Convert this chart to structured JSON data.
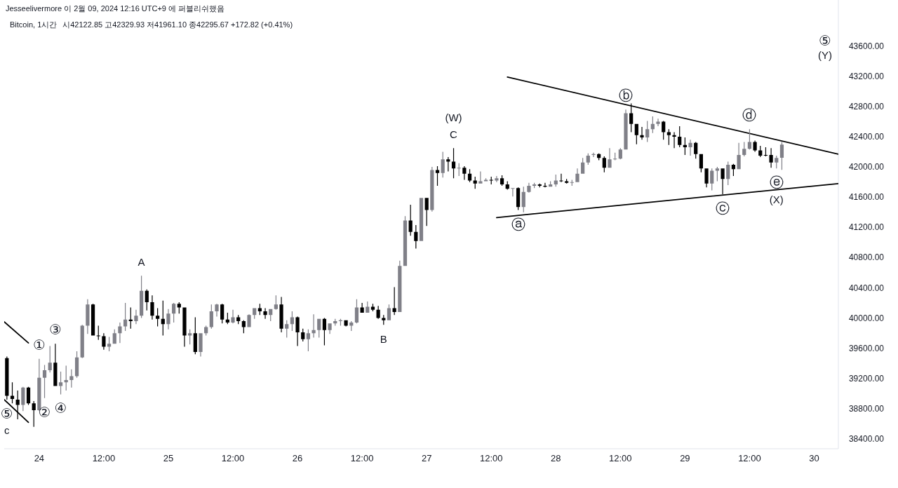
{
  "chart_data": {
    "type": "candlestick",
    "title": "Bitcoin, 1시간",
    "subtitle": "시42122.85 고42329.93 저41961.10 종42295.67 +172.82 (+0.41%)",
    "annotations": [
      "Jesseelivermore 이 2월 09, 2024 12:16 UTC+9 에 퍼블리쉬했음",
      "⑤",
      "(Y)",
      {
        "text": "C",
        "x": "2024-01-27T05:00",
        "y": 42250
      },
      {
        "text": "(W)",
        "x": "2024-01-27T05:00",
        "y": 42250
      },
      {
        "text": "ⓑ",
        "x": "2024-01-28T13:00",
        "y": 42760
      },
      {
        "text": "ⓓ",
        "x": "2024-01-29T12:00",
        "y": 42500
      },
      {
        "text": "ⓐ",
        "x": "2024-01-27T17:00",
        "y": 41430
      },
      {
        "text": "ⓒ",
        "x": "2024-01-29T07:00",
        "y": 41640
      },
      {
        "text": "ⓔ",
        "x": "2024-01-29T17:00",
        "y": 41980
      },
      {
        "text": "(X)",
        "x": "2024-01-29T17:00",
        "y": 41980
      },
      {
        "text": "A",
        "x": "2024-01-24T19:00",
        "y": 40560
      },
      {
        "text": "B",
        "x": "2024-01-26T16:00",
        "y": 39910
      },
      {
        "text": "①",
        "x": "2024-01-24T00:00",
        "y": 39460
      },
      {
        "text": "③",
        "x": "2024-01-24T03:00",
        "y": 39660
      },
      {
        "text": "②",
        "x": "2024-01-24T01:00",
        "y": 38940
      },
      {
        "text": "④",
        "x": "2024-01-24T04:00",
        "y": 38990
      },
      {
        "text": "⑤",
        "x": "2024-01-23T18:00",
        "y": 38920
      },
      {
        "text": "c",
        "x": "2024-01-23T18:00",
        "y": 38920
      }
    ],
    "x": [
      "2024-01-23T18:00",
      "2024-01-23T19:00",
      "2024-01-23T20:00",
      "2024-01-23T21:00",
      "2024-01-23T22:00",
      "2024-01-23T23:00",
      "2024-01-24T00:00",
      "2024-01-24T01:00",
      "2024-01-24T02:00",
      "2024-01-24T03:00",
      "2024-01-24T04:00",
      "2024-01-24T05:00",
      "2024-01-24T06:00",
      "2024-01-24T07:00",
      "2024-01-24T08:00",
      "2024-01-24T09:00",
      "2024-01-24T10:00",
      "2024-01-24T11:00",
      "2024-01-24T12:00",
      "2024-01-24T13:00",
      "2024-01-24T14:00",
      "2024-01-24T15:00",
      "2024-01-24T16:00",
      "2024-01-24T17:00",
      "2024-01-24T18:00",
      "2024-01-24T19:00",
      "2024-01-24T20:00",
      "2024-01-24T21:00",
      "2024-01-24T22:00",
      "2024-01-24T23:00",
      "2024-01-25T00:00",
      "2024-01-25T01:00",
      "2024-01-25T02:00",
      "2024-01-25T03:00",
      "2024-01-25T04:00",
      "2024-01-25T05:00",
      "2024-01-25T06:00",
      "2024-01-25T07:00",
      "2024-01-25T08:00",
      "2024-01-25T09:00",
      "2024-01-25T10:00",
      "2024-01-25T11:00",
      "2024-01-25T12:00",
      "2024-01-25T13:00",
      "2024-01-25T14:00",
      "2024-01-25T15:00",
      "2024-01-25T16:00",
      "2024-01-25T17:00",
      "2024-01-25T18:00",
      "2024-01-25T19:00",
      "2024-01-25T20:00",
      "2024-01-25T21:00",
      "2024-01-25T22:00",
      "2024-01-25T23:00",
      "2024-01-26T00:00",
      "2024-01-26T01:00",
      "2024-01-26T02:00",
      "2024-01-26T03:00",
      "2024-01-26T04:00",
      "2024-01-26T05:00",
      "2024-01-26T06:00",
      "2024-01-26T07:00",
      "2024-01-26T08:00",
      "2024-01-26T09:00",
      "2024-01-26T10:00",
      "2024-01-26T11:00",
      "2024-01-26T12:00",
      "2024-01-26T13:00",
      "2024-01-26T14:00",
      "2024-01-26T15:00",
      "2024-01-26T16:00",
      "2024-01-26T17:00",
      "2024-01-26T18:00",
      "2024-01-26T19:00",
      "2024-01-26T20:00",
      "2024-01-26T21:00",
      "2024-01-26T22:00",
      "2024-01-26T23:00",
      "2024-01-27T00:00",
      "2024-01-27T01:00",
      "2024-01-27T02:00",
      "2024-01-27T03:00",
      "2024-01-27T04:00",
      "2024-01-27T05:00",
      "2024-01-27T06:00",
      "2024-01-27T07:00",
      "2024-01-27T08:00",
      "2024-01-27T09:00",
      "2024-01-27T10:00",
      "2024-01-27T11:00",
      "2024-01-27T12:00",
      "2024-01-27T13:00",
      "2024-01-27T14:00",
      "2024-01-27T15:00",
      "2024-01-27T16:00",
      "2024-01-27T17:00",
      "2024-01-27T18:00",
      "2024-01-27T19:00",
      "2024-01-27T20:00",
      "2024-01-27T21:00",
      "2024-01-27T22:00",
      "2024-01-27T23:00",
      "2024-01-28T00:00",
      "2024-01-28T01:00",
      "2024-01-28T02:00",
      "2024-01-28T03:00",
      "2024-01-28T04:00",
      "2024-01-28T05:00",
      "2024-01-28T06:00",
      "2024-01-28T07:00",
      "2024-01-28T08:00",
      "2024-01-28T09:00",
      "2024-01-28T10:00",
      "2024-01-28T11:00",
      "2024-01-28T12:00",
      "2024-01-28T13:00",
      "2024-01-28T14:00",
      "2024-01-28T15:00",
      "2024-01-28T16:00",
      "2024-01-28T17:00",
      "2024-01-28T18:00",
      "2024-01-28T19:00",
      "2024-01-28T20:00",
      "2024-01-28T21:00",
      "2024-01-28T22:00",
      "2024-01-28T23:00",
      "2024-01-29T00:00",
      "2024-01-29T01:00",
      "2024-01-29T02:00",
      "2024-01-29T03:00",
      "2024-01-29T04:00",
      "2024-01-29T05:00",
      "2024-01-29T06:00",
      "2024-01-29T07:00",
      "2024-01-29T08:00",
      "2024-01-29T09:00",
      "2024-01-29T10:00",
      "2024-01-29T11:00",
      "2024-01-29T12:00",
      "2024-01-29T13:00",
      "2024-01-29T14:00",
      "2024-01-29T15:00",
      "2024-01-29T16:00",
      "2024-01-29T17:00",
      "2024-01-29T18:00"
    ],
    "ohlc": [
      [
        39470,
        39490,
        38920,
        38970
      ],
      [
        38970,
        39150,
        38870,
        38930
      ],
      [
        38920,
        39040,
        38660,
        38850
      ],
      [
        38850,
        39090,
        38770,
        39080
      ],
      [
        39080,
        39090,
        38850,
        38870
      ],
      [
        38870,
        38900,
        38560,
        38780
      ],
      [
        38780,
        39460,
        38770,
        39210
      ],
      [
        39210,
        39380,
        38940,
        39310
      ],
      [
        39310,
        39630,
        39280,
        39410
      ],
      [
        39410,
        39660,
        39100,
        39100
      ],
      [
        39100,
        39290,
        38990,
        39150
      ],
      [
        39150,
        39370,
        39040,
        39180
      ],
      [
        39180,
        39320,
        39080,
        39230
      ],
      [
        39230,
        39560,
        39210,
        39480
      ],
      [
        39480,
        39910,
        39470,
        39900
      ],
      [
        39900,
        40250,
        39790,
        40180
      ],
      [
        40180,
        40190,
        39770,
        39770
      ],
      [
        39770,
        39900,
        39710,
        39760
      ],
      [
        39760,
        39800,
        39580,
        39620
      ],
      [
        39620,
        39750,
        39560,
        39660
      ],
      [
        39660,
        39850,
        39660,
        39800
      ],
      [
        39800,
        39940,
        39670,
        39890
      ],
      [
        39890,
        40200,
        39830,
        39980
      ],
      [
        39980,
        40140,
        39860,
        39960
      ],
      [
        39960,
        40110,
        39920,
        40030
      ],
      [
        40030,
        40560,
        40000,
        40360
      ],
      [
        40360,
        40380,
        40100,
        40210
      ],
      [
        40210,
        40300,
        39980,
        40030
      ],
      [
        40030,
        40130,
        39890,
        39990
      ],
      [
        39990,
        40230,
        39770,
        39920
      ],
      [
        39920,
        40120,
        39850,
        40060
      ],
      [
        40060,
        40200,
        39940,
        40190
      ],
      [
        40190,
        40210,
        40060,
        40140
      ],
      [
        40140,
        40140,
        39620,
        39770
      ],
      [
        39770,
        39850,
        39650,
        39800
      ],
      [
        39800,
        40010,
        39520,
        39550
      ],
      [
        39550,
        39800,
        39490,
        39800
      ],
      [
        39800,
        39900,
        39770,
        39880
      ],
      [
        39880,
        40180,
        39860,
        40090
      ],
      [
        40090,
        40190,
        40020,
        40180
      ],
      [
        40180,
        40190,
        39930,
        39980
      ],
      [
        39980,
        40070,
        39920,
        39940
      ],
      [
        39940,
        40110,
        39930,
        40010
      ],
      [
        40010,
        40040,
        39920,
        39960
      ],
      [
        39960,
        39970,
        39800,
        39880
      ],
      [
        39880,
        40050,
        39880,
        40040
      ],
      [
        40040,
        40130,
        39990,
        40130
      ],
      [
        40130,
        40190,
        40040,
        40090
      ],
      [
        40090,
        40130,
        39990,
        40040
      ],
      [
        40040,
        40120,
        39960,
        40120
      ],
      [
        40120,
        40300,
        40110,
        40180
      ],
      [
        40180,
        40280,
        39810,
        39860
      ],
      [
        39860,
        39970,
        39740,
        39920
      ],
      [
        39920,
        40090,
        39830,
        40010
      ],
      [
        40010,
        40020,
        39630,
        39810
      ],
      [
        39810,
        39860,
        39690,
        39720
      ],
      [
        39720,
        39850,
        39560,
        39800
      ],
      [
        39800,
        40050,
        39740,
        39840
      ],
      [
        39840,
        39990,
        39740,
        39990
      ],
      [
        39990,
        40000,
        39640,
        39840
      ],
      [
        39840,
        39930,
        39790,
        39930
      ],
      [
        39930,
        39990,
        39900,
        39960
      ],
      [
        39960,
        39990,
        39900,
        39970
      ],
      [
        39970,
        39970,
        39890,
        39900
      ],
      [
        39900,
        39960,
        39830,
        39940
      ],
      [
        39940,
        40250,
        39930,
        40140
      ],
      [
        40140,
        40200,
        40070,
        40070
      ],
      [
        40070,
        40220,
        40070,
        40150
      ],
      [
        40150,
        40190,
        40090,
        40110
      ],
      [
        40110,
        40160,
        39990,
        40000
      ],
      [
        40000,
        40040,
        39910,
        39970
      ],
      [
        39970,
        40180,
        39970,
        40130
      ],
      [
        40130,
        40410,
        40040,
        40080
      ],
      [
        40080,
        40760,
        40080,
        40690
      ],
      [
        40690,
        41350,
        40690,
        41290
      ],
      [
        41290,
        41500,
        41090,
        41140
      ],
      [
        41140,
        41230,
        40920,
        41020
      ],
      [
        41020,
        41590,
        41020,
        41590
      ],
      [
        41590,
        41590,
        41220,
        41430
      ],
      [
        41430,
        42000,
        41410,
        41960
      ],
      [
        41960,
        42010,
        41750,
        41920
      ],
      [
        41920,
        42200,
        41860,
        42100
      ],
      [
        42100,
        42130,
        41940,
        42070
      ],
      [
        42070,
        42250,
        41850,
        41980
      ],
      [
        41980,
        42050,
        41880,
        41990
      ],
      [
        41990,
        42010,
        41830,
        41910
      ],
      [
        41910,
        41970,
        41800,
        41820
      ],
      [
        41820,
        41870,
        41710,
        41780
      ],
      [
        41780,
        41940,
        41780,
        41810
      ],
      [
        41810,
        41850,
        41810,
        41830
      ],
      [
        41830,
        41870,
        41770,
        41820
      ],
      [
        41820,
        41880,
        41800,
        41850
      ],
      [
        41850,
        41890,
        41750,
        41770
      ],
      [
        41770,
        41810,
        41700,
        41710
      ],
      [
        41710,
        41720,
        41610,
        41720
      ],
      [
        41720,
        41730,
        41430,
        41470
      ],
      [
        41470,
        41740,
        41400,
        41670
      ],
      [
        41670,
        41790,
        41660,
        41750
      ],
      [
        41750,
        41790,
        41720,
        41770
      ],
      [
        41770,
        41780,
        41730,
        41750
      ],
      [
        41750,
        41790,
        41730,
        41740
      ],
      [
        41740,
        41810,
        41740,
        41770
      ],
      [
        41770,
        41900,
        41740,
        41820
      ],
      [
        41820,
        41910,
        41800,
        41810
      ],
      [
        41810,
        41840,
        41780,
        41790
      ],
      [
        41790,
        41830,
        41750,
        41800
      ],
      [
        41800,
        41980,
        41800,
        41910
      ],
      [
        41910,
        42120,
        41910,
        42060
      ],
      [
        42060,
        42180,
        42030,
        42150
      ],
      [
        42160,
        42190,
        42130,
        42170
      ],
      [
        42170,
        42180,
        42090,
        42120
      ],
      [
        42120,
        42140,
        41930,
        41990
      ],
      [
        41990,
        42250,
        41990,
        42100
      ],
      [
        42100,
        42190,
        42090,
        42110
      ],
      [
        42110,
        42250,
        42100,
        42230
      ],
      [
        42230,
        42760,
        42230,
        42710
      ],
      [
        42710,
        42840,
        42460,
        42570
      ],
      [
        42570,
        42570,
        42300,
        42420
      ],
      [
        42420,
        42530,
        42360,
        42390
      ],
      [
        42390,
        42610,
        42330,
        42500
      ],
      [
        42500,
        42670,
        42450,
        42570
      ],
      [
        42570,
        42640,
        42540,
        42600
      ],
      [
        42600,
        42610,
        42360,
        42460
      ],
      [
        42460,
        42500,
        42290,
        42420
      ],
      [
        42420,
        42460,
        42250,
        42400
      ],
      [
        42400,
        42540,
        42260,
        42290
      ],
      [
        42290,
        42390,
        42160,
        42260
      ],
      [
        42260,
        42360,
        42150,
        42320
      ],
      [
        42320,
        42330,
        42110,
        42170
      ],
      [
        42170,
        42170,
        41930,
        41980
      ],
      [
        41980,
        41980,
        41730,
        41780
      ],
      [
        41780,
        41980,
        41690,
        41950
      ],
      [
        41950,
        42000,
        41810,
        41980
      ],
      [
        41980,
        41980,
        41640,
        41840
      ],
      [
        41840,
        42070,
        41760,
        42030
      ],
      [
        42030,
        42040,
        41880,
        41970
      ],
      [
        41970,
        42320,
        41970,
        42160
      ],
      [
        42160,
        42330,
        42140,
        42240
      ],
      [
        42240,
        42500,
        42230,
        42330
      ],
      [
        42330,
        42350,
        42200,
        42220
      ],
      [
        42220,
        42280,
        42130,
        42150
      ],
      [
        42160,
        42260,
        42140,
        42150
      ],
      [
        42160,
        42250,
        41990,
        42060
      ],
      [
        42060,
        42150,
        41980,
        42120
      ],
      [
        42122.85,
        42329.93,
        41961.1,
        42295.67
      ]
    ],
    "colors": [
      "#000000",
      "#000000",
      "#000000",
      "#808088",
      "#000000",
      "#000000",
      "#808088",
      "#808088",
      "#808088",
      "#000000",
      "#808088",
      "#808088",
      "#808088",
      "#808088",
      "#808088",
      "#808088",
      "#000000",
      "#000000",
      "#000000",
      "#808088",
      "#808088",
      "#808088",
      "#808088",
      "#000000",
      "#808088",
      "#808088",
      "#000000",
      "#000000",
      "#000000",
      "#000000",
      "#808088",
      "#808088",
      "#000000",
      "#000000",
      "#808088",
      "#000000",
      "#808088",
      "#808088",
      "#808088",
      "#808088",
      "#000000",
      "#000000",
      "#808088",
      "#000000",
      "#000000",
      "#808088",
      "#808088",
      "#000000",
      "#000000",
      "#808088",
      "#808088",
      "#000000",
      "#808088",
      "#808088",
      "#000000",
      "#000000",
      "#808088",
      "#808088",
      "#808088",
      "#000000",
      "#808088",
      "#808088",
      "#808088",
      "#000000",
      "#808088",
      "#808088",
      "#000000",
      "#808088",
      "#000000",
      "#000000",
      "#000000",
      "#808088",
      "#000000",
      "#808088",
      "#808088",
      "#000000",
      "#000000",
      "#808088",
      "#000000",
      "#808088",
      "#000000",
      "#808088",
      "#000000",
      "#000000",
      "#808088",
      "#000000",
      "#000000",
      "#000000",
      "#808088",
      "#808088",
      "#000000",
      "#808088",
      "#000000",
      "#000000",
      "#808088",
      "#000000",
      "#808088",
      "#808088",
      "#808088",
      "#000000",
      "#000000",
      "#808088",
      "#808088",
      "#000000",
      "#000000",
      "#808088",
      "#808088",
      "#808088",
      "#808088",
      "#808088",
      "#000000",
      "#000000",
      "#808088",
      "#808088",
      "#808088",
      "#808088",
      "#000000",
      "#000000",
      "#000000",
      "#808088",
      "#808088",
      "#808088",
      "#000000",
      "#000000",
      "#000000",
      "#000000",
      "#000000",
      "#808088",
      "#000000",
      "#000000",
      "#000000",
      "#808088",
      "#808088",
      "#000000",
      "#808088",
      "#000000",
      "#808088",
      "#808088",
      "#808088",
      "#000000",
      "#000000",
      "#000000",
      "#000000",
      "#808088",
      "#808088"
    ],
    "series": [
      {
        "type": "line",
        "color": "#000000",
        "x": [
          "2024-01-27T15:00",
          "2024-01-30T04:30"
        ],
        "values": [
          43190,
          42170
        ]
      },
      {
        "type": "line",
        "color": "#000000",
        "x": [
          "2024-01-27T13:00",
          "2024-01-30T04:30"
        ],
        "values": [
          41330,
          41780
        ]
      },
      {
        "type": "line",
        "color": "#000000",
        "x": [
          "2024-01-23T17:30",
          "2024-01-23T22:00"
        ],
        "values": [
          39950,
          39670
        ]
      },
      {
        "type": "line",
        "color": "#000000",
        "x": [
          "2024-01-23T17:30",
          "2024-01-23T22:00"
        ],
        "values": [
          38920,
          38620
        ]
      }
    ],
    "xlim": [
      "2024-01-23T17:30",
      "2024-01-30T04:30"
    ],
    "ylim": [
      38270,
      44210
    ],
    "xticks": [
      {
        "value": "2024-01-24",
        "label": "24"
      },
      {
        "value": "2024-01-24T12:00",
        "label": "12:00"
      },
      {
        "value": "2024-01-25",
        "label": "25"
      },
      {
        "value": "2024-01-25T12:00",
        "label": "12:00"
      },
      {
        "value": "2024-01-26",
        "label": "26"
      },
      {
        "value": "2024-01-26T12:00",
        "label": "12:00"
      },
      {
        "value": "2024-01-27",
        "label": "27"
      },
      {
        "value": "2024-01-27T12:00",
        "label": "12:00"
      },
      {
        "value": "2024-01-28",
        "label": "28"
      },
      {
        "value": "2024-01-28T12:00",
        "label": "12:00"
      },
      {
        "value": "2024-01-29",
        "label": "29"
      },
      {
        "value": "2024-01-29T12:00",
        "label": "12:00"
      },
      {
        "value": "2024-01-30",
        "label": "30"
      }
    ],
    "yticks": [
      {
        "value": 38400,
        "label": "38400.00"
      },
      {
        "value": 38800,
        "label": "38800.00"
      },
      {
        "value": 39200,
        "label": "39200.00"
      },
      {
        "value": 39600,
        "label": "39600.00"
      },
      {
        "value": 40000,
        "label": "40000.00"
      },
      {
        "value": 40400,
        "label": "40400.00"
      },
      {
        "value": 40800,
        "label": "40800.00"
      },
      {
        "value": 41200,
        "label": "41200.00"
      },
      {
        "value": 41600,
        "label": "41600.00"
      },
      {
        "value": 42000,
        "label": "42000.00"
      },
      {
        "value": 42400,
        "label": "42400.00"
      },
      {
        "value": 42800,
        "label": "42800.00"
      },
      {
        "value": 43200,
        "label": "43200.00"
      },
      {
        "value": 43600,
        "label": "43600.00"
      }
    ]
  }
}
